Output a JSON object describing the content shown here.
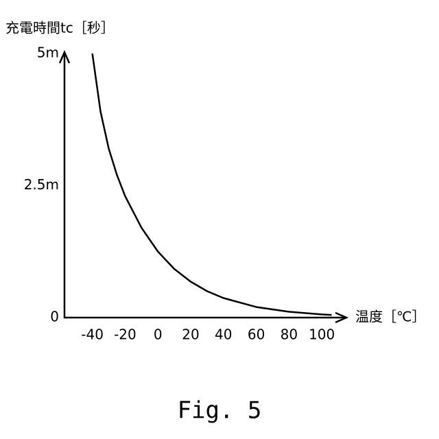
{
  "chart_data": {
    "type": "line",
    "y_label": "充電時間tc［秒］",
    "x_label": "温度［℃］",
    "caption": "Fig. 5",
    "x": [
      -40,
      -35,
      -30,
      -25,
      -20,
      -10,
      0,
      10,
      20,
      30,
      40,
      60,
      80,
      100,
      106
    ],
    "series": [
      {
        "color": "#000000",
        "values": [
          0.005,
          0.0039,
          0.0032,
          0.0027,
          0.0023,
          0.0017,
          0.00125,
          0.00092,
          0.00068,
          0.0005,
          0.00037,
          0.0002,
          0.00011,
          6e-05,
          5e-05
        ]
      }
    ],
    "xlim": [
      -57,
      115
    ],
    "xticks": [
      -40,
      -20,
      0,
      20,
      40,
      60,
      80,
      100
    ],
    "ylim": [
      0,
      0.005
    ],
    "yticks": [
      0,
      {
        "value": 0.0025,
        "label": "2.5m"
      },
      {
        "value": 0.005,
        "label": "5m"
      }
    ]
  }
}
